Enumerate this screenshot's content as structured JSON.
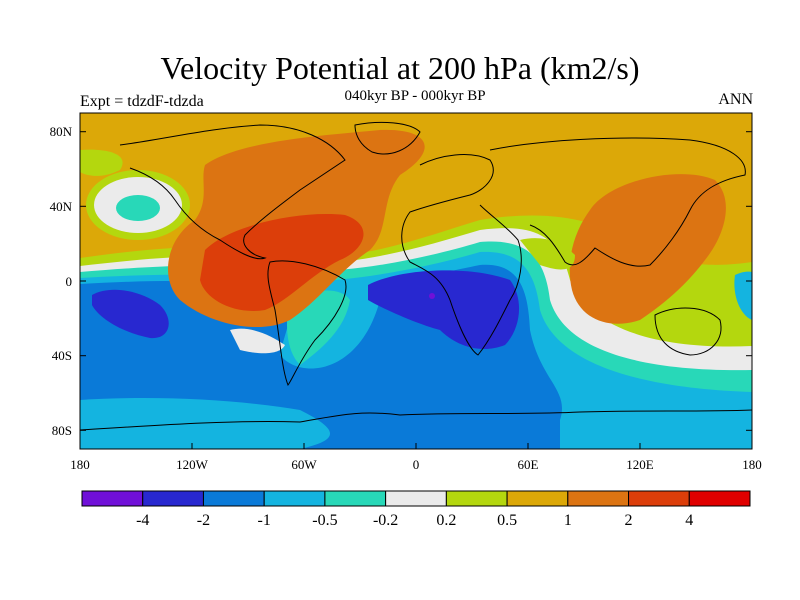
{
  "title": "Velocity Potential at 200 hPa (km2/s)",
  "subtitle": "040kyr BP - 000kyr BP",
  "left_label": "Expt = tdzdF-tdzda",
  "right_label": "ANN",
  "lat_ticks": [
    "80N",
    "40N",
    "0",
    "40S",
    "80S"
  ],
  "lon_ticks": [
    "180",
    "120W",
    "60W",
    "0",
    "60E",
    "120E",
    "180"
  ],
  "colorbar": {
    "colors": [
      "#7010d8",
      "#2828d0",
      "#0a7ad8",
      "#14b4e0",
      "#28d8b8",
      "#ebebeb",
      "#b4d70e",
      "#dca808",
      "#dc7412",
      "#dc3e0a",
      "#e00000"
    ],
    "labels": [
      "-4",
      "-2",
      "-1",
      "-0.5",
      "-0.2",
      "0.2",
      "0.5",
      "1",
      "2",
      "4"
    ]
  },
  "colors": {
    "ocean_negative": "#0a7ad8",
    "positive_background": "#dca808"
  }
}
